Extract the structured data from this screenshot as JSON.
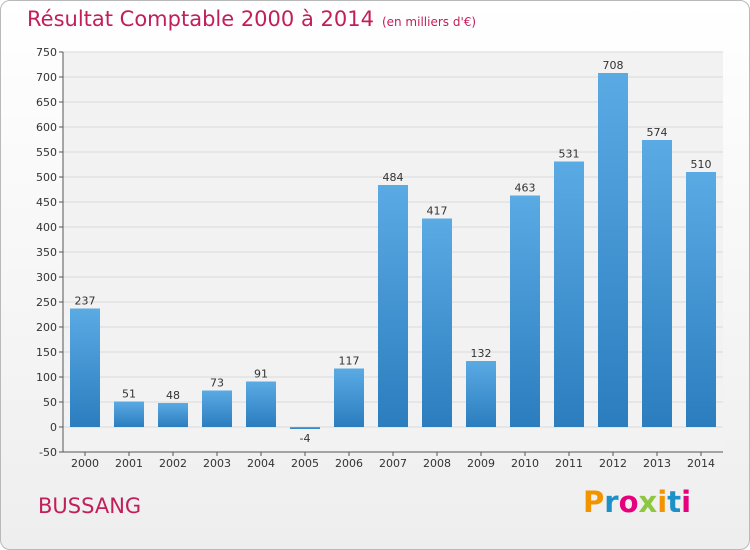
{
  "title": "Résultat Comptable 2000 à 2014",
  "subtitle": "(en milliers d'€)",
  "city": "BUSSANG",
  "logo": {
    "text": "Proxiti",
    "colors": [
      "#f29400",
      "#1e90c8",
      "#e6007e",
      "#8dc63f",
      "#f29400",
      "#1e90c8",
      "#e6007e"
    ]
  },
  "colors": {
    "bar_top": "#5aaae4",
    "bar_bottom": "#2b7dbe",
    "title": "#c21e5a",
    "grid": "#d9d9d9"
  },
  "chart_data": {
    "type": "bar",
    "title": "Résultat Comptable 2000 à 2014",
    "subtitle": "(en milliers d'€)",
    "categories": [
      "2000",
      "2001",
      "2002",
      "2003",
      "2004",
      "2005",
      "2006",
      "2007",
      "2008",
      "2009",
      "2010",
      "2011",
      "2012",
      "2013",
      "2014"
    ],
    "values": [
      237,
      51,
      48,
      73,
      91,
      -4,
      117,
      484,
      417,
      132,
      463,
      531,
      708,
      574,
      510
    ],
    "ylim": [
      -50,
      750
    ],
    "yticks": [
      -50,
      0,
      50,
      100,
      150,
      200,
      250,
      300,
      350,
      400,
      450,
      500,
      550,
      600,
      650,
      700,
      750
    ],
    "grid": true
  }
}
